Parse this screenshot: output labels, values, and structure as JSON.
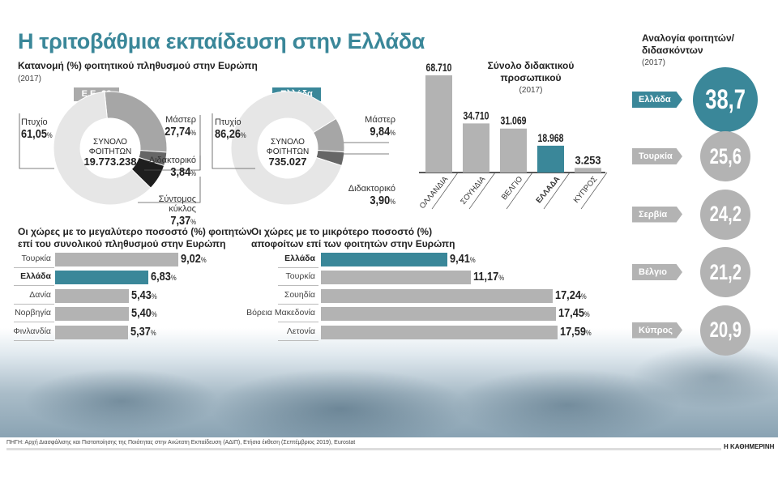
{
  "title": "Η τριτοβάθμια εκπαίδευση στην Ελλάδα",
  "chart_data": [
    {
      "type": "pie",
      "title": "Κατανομή (%) φοιτητικού πληθυσμού στην Ευρώπη",
      "subtitle": "(2017)",
      "group": "Ε.Ε.-28",
      "center_label": [
        "ΣΥΝΟΛΟ",
        "ΦΟΙΤΗΤΩΝ"
      ],
      "center_value": "19.773.238",
      "slices": [
        {
          "label": "Μάστερ",
          "value": 27.74,
          "display": "27,74",
          "color": "#a6a6a6"
        },
        {
          "label": "Διδακτορικό",
          "value": 3.84,
          "display": "3,84",
          "color": "#666666"
        },
        {
          "label": "Σύντομος κύκλος",
          "value": 7.37,
          "display": "7,37",
          "color": "#1e1e1e"
        },
        {
          "label": "Πτυχίο",
          "value": 61.05,
          "display": "61,05",
          "color": "#e6e6e6"
        }
      ]
    },
    {
      "type": "pie",
      "group": "Ελλάδα",
      "center_label": [
        "ΣΥΝΟΛΟ",
        "ΦΟΙΤΗΤΩΝ"
      ],
      "center_value": "735.027",
      "slices": [
        {
          "label": "Μάστερ",
          "value": 9.84,
          "display": "9,84",
          "color": "#a6a6a6"
        },
        {
          "label": "Διδακτορικό",
          "value": 3.9,
          "display": "3,90",
          "color": "#666666"
        },
        {
          "label": "Πτυχίο",
          "value": 86.26,
          "display": "86,26",
          "color": "#e6e6e6"
        }
      ]
    },
    {
      "type": "bar",
      "title": "Σύνολο διδακτικού προσωπικού",
      "subtitle": "(2017)",
      "categories": [
        "ΟΛΛΑΝΔΙΑ",
        "ΣΟΥΗΔΙΑ",
        "ΒΕΛΓΙΟ",
        "ΕΛΛΑΔΑ",
        "ΚΥΠΡΟΣ"
      ],
      "values": [
        68710,
        34710,
        31069,
        18968,
        3253
      ],
      "labels": [
        "68.710",
        "34.710",
        "31.069",
        "18.968",
        "3.253"
      ],
      "highlight": "ΕΛΛΑΔΑ"
    },
    {
      "type": "bar",
      "orientation": "horizontal",
      "title": "Οι χώρες με το μεγαλύτερο ποσοστό (%) φοιτητών επί του συνολικού πληθυσμού στην Ευρώπη",
      "categories": [
        "Τουρκία",
        "Ελλάδα",
        "Δανία",
        "Νορβηγία",
        "Φινλανδία"
      ],
      "values": [
        9.02,
        6.83,
        5.43,
        5.4,
        5.37
      ],
      "labels": [
        "9,02",
        "6,83",
        "5,43",
        "5,40",
        "5,37"
      ],
      "highlight": "Ελλάδα"
    },
    {
      "type": "bar",
      "orientation": "horizontal",
      "title": "Οι χώρες με το μικρότερο ποσοστό (%) αποφοίτων επί των φοιτητών στην Ευρώπη",
      "categories": [
        "Ελλάδα",
        "Τουρκία",
        "Σουηδία",
        "Βόρεια Μακεδονία",
        "Λετονία"
      ],
      "values": [
        9.41,
        11.17,
        17.24,
        17.45,
        17.59
      ],
      "labels": [
        "9,41",
        "11,17",
        "17,24",
        "17,45",
        "17,59"
      ],
      "highlight": "Ελλάδα"
    },
    {
      "type": "bubble",
      "title": "Αναλογία φοιτητών/διδασκόντων",
      "subtitle": "(2017)",
      "categories": [
        "Ελλάδα",
        "Τουρκία",
        "Σερβία",
        "Βέλγιο",
        "Κύπρος"
      ],
      "values": [
        38.7,
        25.6,
        24.2,
        21.2,
        20.9
      ],
      "labels": [
        "38,7",
        "25,6",
        "24,2",
        "21,2",
        "20,9"
      ],
      "highlight": "Ελλάδα"
    }
  ],
  "colors": {
    "accent": "#3a8799",
    "bar": "#b3b3b3"
  },
  "pct": "%",
  "footer": {
    "source": "ΠΗΓΗ: Αρχή Διασφάλισης και Πιστοποίησης της Ποιότητας στην Ανώτατη Εκπαίδευση (ΑΔΙΠ), Ετήσια έκθεση (Σεπτέμβριος 2019), Eurostat",
    "brand": "Η ΚΑΘΗΜΕΡΙΝΗ"
  }
}
